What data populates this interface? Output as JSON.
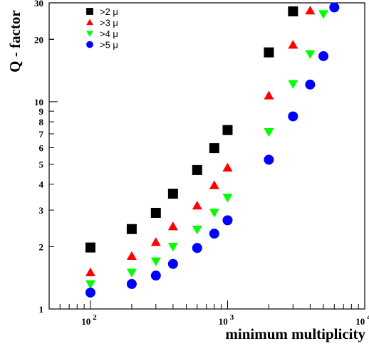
{
  "chart_data": {
    "type": "scatter",
    "title": "",
    "xlabel": "minimum multiplicity",
    "ylabel": "Q - factor",
    "xscale": "log",
    "yscale": "log",
    "xlim": [
      50,
      10000
    ],
    "ylim": [
      1,
      30
    ],
    "x_tick_labels": [
      {
        "value": 100,
        "base": "10",
        "exp": "2"
      },
      {
        "value": 1000,
        "base": "10",
        "exp": "3"
      },
      {
        "value": 10000,
        "base": "10",
        "exp": "4"
      }
    ],
    "y_tick_labels": [
      {
        "value": 1,
        "label": "1"
      },
      {
        "value": 2,
        "label": "2"
      },
      {
        "value": 3,
        "label": "3"
      },
      {
        "value": 4,
        "label": "4"
      },
      {
        "value": 5,
        "label": "5"
      },
      {
        "value": 6,
        "label": "6"
      },
      {
        "value": 7,
        "label": "7"
      },
      {
        "value": 8,
        "label": "8"
      },
      {
        "value": 9,
        "label": "9"
      },
      {
        "value": 10,
        "label": "10"
      },
      {
        "value": 20,
        "label": "20"
      },
      {
        "value": 30,
        "label": "30"
      }
    ],
    "legend_position": "top-left",
    "series": [
      {
        "name": ">2 μ",
        "marker": "square",
        "color": "#000000",
        "points": [
          [
            100,
            1.98
          ],
          [
            200,
            2.43
          ],
          [
            300,
            2.91
          ],
          [
            400,
            3.6
          ],
          [
            600,
            4.68
          ],
          [
            800,
            5.97
          ],
          [
            1000,
            7.3
          ],
          [
            2000,
            17.3
          ],
          [
            3000,
            27.3
          ]
        ]
      },
      {
        "name": ">3 μ",
        "marker": "triangle-up",
        "color": "#ff0000",
        "points": [
          [
            100,
            1.5
          ],
          [
            200,
            1.8
          ],
          [
            300,
            2.1
          ],
          [
            400,
            2.5
          ],
          [
            600,
            3.15
          ],
          [
            800,
            3.95
          ],
          [
            1000,
            4.8
          ],
          [
            2000,
            10.7
          ],
          [
            3000,
            18.8
          ],
          [
            4000,
            27.5
          ]
        ]
      },
      {
        "name": ">4 μ",
        "marker": "triangle-down",
        "color": "#00ff00",
        "points": [
          [
            100,
            1.32
          ],
          [
            200,
            1.5
          ],
          [
            300,
            1.7
          ],
          [
            400,
            2.0
          ],
          [
            600,
            2.42
          ],
          [
            800,
            2.92
          ],
          [
            1000,
            3.45
          ],
          [
            2000,
            7.15
          ],
          [
            3000,
            12.2
          ],
          [
            4000,
            17.0
          ],
          [
            5000,
            26.5
          ]
        ]
      },
      {
        "name": ">5 μ",
        "marker": "circle",
        "color": "#0000ff",
        "points": [
          [
            100,
            1.2
          ],
          [
            200,
            1.32
          ],
          [
            300,
            1.45
          ],
          [
            400,
            1.65
          ],
          [
            600,
            1.97
          ],
          [
            800,
            2.31
          ],
          [
            1000,
            2.68
          ],
          [
            2000,
            5.25
          ],
          [
            3000,
            8.5
          ],
          [
            4000,
            12.1
          ],
          [
            5000,
            16.6
          ],
          [
            6000,
            28.5
          ]
        ]
      }
    ]
  }
}
